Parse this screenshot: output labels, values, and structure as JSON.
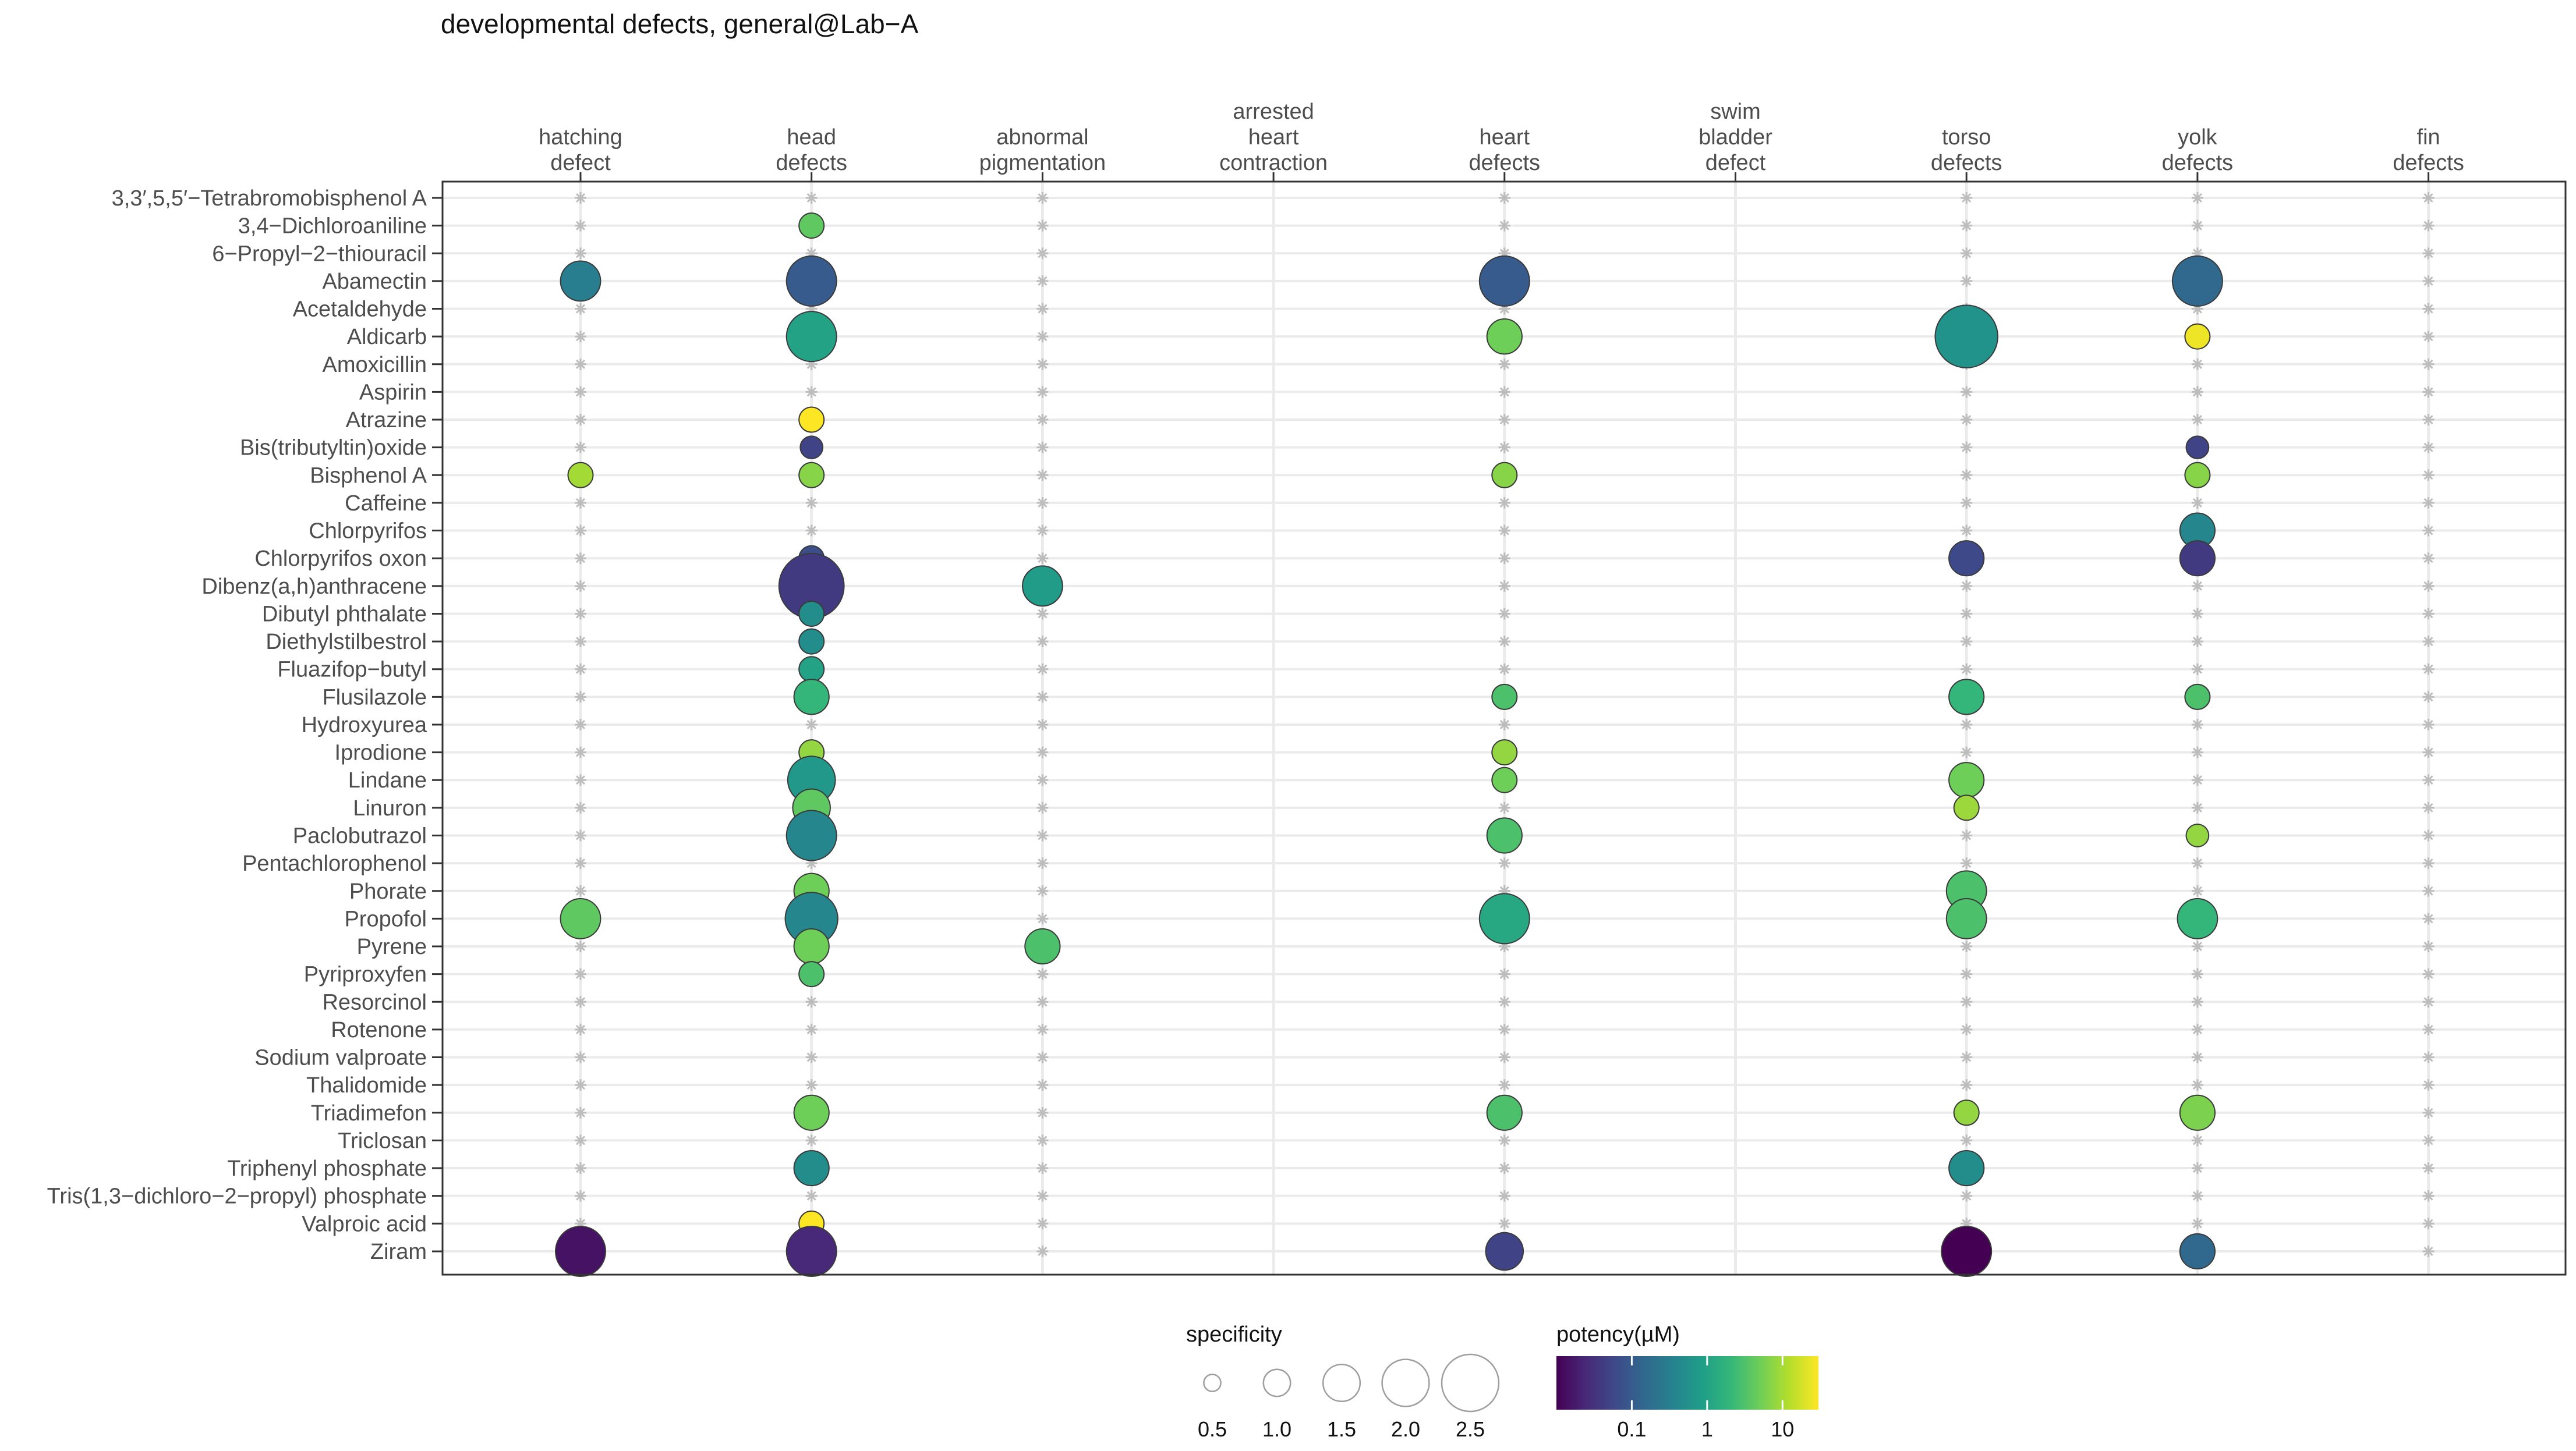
{
  "chart_data": {
    "type": "scatter",
    "title": "developmental defects, general@Lab−A",
    "columns": [
      [
        "hatching",
        "defect"
      ],
      [
        "head",
        "defects"
      ],
      [
        "abnormal",
        "pigmentation"
      ],
      [
        "arrested",
        "heart",
        "contraction"
      ],
      [
        "heart",
        "defects"
      ],
      [
        "swim",
        "bladder",
        "defect"
      ],
      [
        "torso",
        "defects"
      ],
      [
        "yolk",
        "defects"
      ],
      [
        "fin",
        "defects"
      ]
    ],
    "rows": [
      "3,3′,5,5′−Tetrabromobisphenol A",
      "3,4−Dichloroaniline",
      "6−Propyl−2−thiouracil",
      "Abamectin",
      "Acetaldehyde",
      "Aldicarb",
      "Amoxicillin",
      "Aspirin",
      "Atrazine",
      "Bis(tributyltin)oxide",
      "Bisphenol A",
      "Caffeine",
      "Chlorpyrifos",
      "Chlorpyrifos oxon",
      "Dibenz(a,h)anthracene",
      "Dibutyl phthalate",
      "Diethylstilbestrol",
      "Fluazifop−butyl",
      "Flusilazole",
      "Hydroxyurea",
      "Iprodione",
      "Lindane",
      "Linuron",
      "Paclobutrazol",
      "Pentachlorophenol",
      "Phorate",
      "Propofol",
      "Pyrene",
      "Pyriproxyfen",
      "Resorcinol",
      "Rotenone",
      "Sodium valproate",
      "Thalidomide",
      "Triadimefon",
      "Triclosan",
      "Triphenyl phosphate",
      "Tris(1,3−dichloro−2−propyl) phosphate",
      "Valproic acid",
      "Ziram"
    ],
    "points": [
      {
        "row": 1,
        "col": 1,
        "specificity": 1.0,
        "potency_uM": 4
      },
      {
        "row": 3,
        "col": 0,
        "specificity": 1.6,
        "potency_uM": 0.3
      },
      {
        "row": 3,
        "col": 1,
        "specificity": 2.0,
        "potency_uM": 0.1
      },
      {
        "row": 3,
        "col": 4,
        "specificity": 2.0,
        "potency_uM": 0.1
      },
      {
        "row": 3,
        "col": 7,
        "specificity": 2.0,
        "potency_uM": 0.15
      },
      {
        "row": 5,
        "col": 1,
        "specificity": 2.0,
        "potency_uM": 1
      },
      {
        "row": 5,
        "col": 4,
        "specificity": 1.4,
        "potency_uM": 5
      },
      {
        "row": 5,
        "col": 6,
        "specificity": 2.5,
        "potency_uM": 0.6
      },
      {
        "row": 5,
        "col": 7,
        "specificity": 1.0,
        "potency_uM": 25
      },
      {
        "row": 8,
        "col": 1,
        "specificity": 1.0,
        "potency_uM": 30
      },
      {
        "row": 9,
        "col": 1,
        "specificity": 0.9,
        "potency_uM": 0.05
      },
      {
        "row": 9,
        "col": 7,
        "specificity": 0.9,
        "potency_uM": 0.05
      },
      {
        "row": 10,
        "col": 0,
        "specificity": 1.0,
        "potency_uM": 10
      },
      {
        "row": 10,
        "col": 1,
        "specificity": 1.0,
        "potency_uM": 7
      },
      {
        "row": 10,
        "col": 4,
        "specificity": 1.0,
        "potency_uM": 7
      },
      {
        "row": 10,
        "col": 7,
        "specificity": 1.0,
        "potency_uM": 7
      },
      {
        "row": 12,
        "col": 7,
        "specificity": 1.4,
        "potency_uM": 0.4
      },
      {
        "row": 13,
        "col": 1,
        "specificity": 1.0,
        "potency_uM": 0.07
      },
      {
        "row": 13,
        "col": 6,
        "specificity": 1.4,
        "potency_uM": 0.06
      },
      {
        "row": 13,
        "col": 7,
        "specificity": 1.4,
        "potency_uM": 0.04
      },
      {
        "row": 14,
        "col": 1,
        "specificity": 2.6,
        "potency_uM": 0.04
      },
      {
        "row": 14,
        "col": 2,
        "specificity": 1.6,
        "potency_uM": 0.8
      },
      {
        "row": 15,
        "col": 1,
        "specificity": 1.0,
        "potency_uM": 0.5
      },
      {
        "row": 16,
        "col": 1,
        "specificity": 1.0,
        "potency_uM": 0.5
      },
      {
        "row": 17,
        "col": 1,
        "specificity": 1.0,
        "potency_uM": 1
      },
      {
        "row": 18,
        "col": 1,
        "specificity": 1.4,
        "potency_uM": 2
      },
      {
        "row": 18,
        "col": 4,
        "specificity": 1.0,
        "potency_uM": 3
      },
      {
        "row": 18,
        "col": 6,
        "specificity": 1.4,
        "potency_uM": 2
      },
      {
        "row": 18,
        "col": 7,
        "specificity": 1.0,
        "potency_uM": 3
      },
      {
        "row": 20,
        "col": 1,
        "specificity": 1.0,
        "potency_uM": 8
      },
      {
        "row": 20,
        "col": 4,
        "specificity": 1.0,
        "potency_uM": 8
      },
      {
        "row": 21,
        "col": 1,
        "specificity": 1.9,
        "potency_uM": 0.7
      },
      {
        "row": 21,
        "col": 4,
        "specificity": 1.0,
        "potency_uM": 5
      },
      {
        "row": 21,
        "col": 6,
        "specificity": 1.4,
        "potency_uM": 5
      },
      {
        "row": 22,
        "col": 1,
        "specificity": 1.5,
        "potency_uM": 4
      },
      {
        "row": 22,
        "col": 6,
        "specificity": 1.0,
        "potency_uM": 9
      },
      {
        "row": 23,
        "col": 1,
        "specificity": 2.0,
        "potency_uM": 0.4
      },
      {
        "row": 23,
        "col": 4,
        "specificity": 1.4,
        "potency_uM": 3
      },
      {
        "row": 23,
        "col": 7,
        "specificity": 0.9,
        "potency_uM": 8
      },
      {
        "row": 25,
        "col": 1,
        "specificity": 1.4,
        "potency_uM": 5
      },
      {
        "row": 25,
        "col": 6,
        "specificity": 1.6,
        "potency_uM": 3
      },
      {
        "row": 26,
        "col": 0,
        "specificity": 1.6,
        "potency_uM": 4
      },
      {
        "row": 26,
        "col": 1,
        "specificity": 2.1,
        "potency_uM": 0.4
      },
      {
        "row": 26,
        "col": 4,
        "specificity": 2.0,
        "potency_uM": 1.2
      },
      {
        "row": 26,
        "col": 6,
        "specificity": 1.6,
        "potency_uM": 3
      },
      {
        "row": 26,
        "col": 7,
        "specificity": 1.6,
        "potency_uM": 2
      },
      {
        "row": 27,
        "col": 1,
        "specificity": 1.4,
        "potency_uM": 5
      },
      {
        "row": 27,
        "col": 2,
        "specificity": 1.4,
        "potency_uM": 3
      },
      {
        "row": 28,
        "col": 1,
        "specificity": 1.0,
        "potency_uM": 3
      },
      {
        "row": 33,
        "col": 1,
        "specificity": 1.4,
        "potency_uM": 5
      },
      {
        "row": 33,
        "col": 4,
        "specificity": 1.4,
        "potency_uM": 3
      },
      {
        "row": 33,
        "col": 6,
        "specificity": 1.0,
        "potency_uM": 8
      },
      {
        "row": 33,
        "col": 7,
        "specificity": 1.4,
        "potency_uM": 6
      },
      {
        "row": 35,
        "col": 1,
        "specificity": 1.4,
        "potency_uM": 0.5
      },
      {
        "row": 35,
        "col": 6,
        "specificity": 1.4,
        "potency_uM": 0.5
      },
      {
        "row": 37,
        "col": 1,
        "specificity": 1.0,
        "potency_uM": 30
      },
      {
        "row": 38,
        "col": 0,
        "specificity": 2.0,
        "potency_uM": 0.015
      },
      {
        "row": 38,
        "col": 1,
        "specificity": 2.0,
        "potency_uM": 0.025
      },
      {
        "row": 38,
        "col": 4,
        "specificity": 1.5,
        "potency_uM": 0.05
      },
      {
        "row": 38,
        "col": 6,
        "specificity": 2.0,
        "potency_uM": 0.01
      },
      {
        "row": 38,
        "col": 7,
        "specificity": 1.4,
        "potency_uM": 0.15
      }
    ],
    "legend": {
      "specificity_title": "specificity",
      "specificity_values": [
        0.5,
        1.0,
        1.5,
        2.0,
        2.5
      ],
      "specificity_labels": [
        "0.5",
        "1.0",
        "1.5",
        "2.0",
        "2.5"
      ],
      "potency_title": "potency(µM)",
      "potency_ticks": [
        0.1,
        1,
        10
      ],
      "potency_labels": [
        "0.1",
        "1",
        "10"
      ],
      "potency_range": [
        0.01,
        30
      ]
    },
    "colors": {
      "viridis": [
        "#440154",
        "#482878",
        "#3e4989",
        "#31688e",
        "#26828e",
        "#1f9e89",
        "#35b779",
        "#6ece58",
        "#b5de2b",
        "#fde725"
      ],
      "placeholder": "#bdbdbd",
      "grid": "#ebebeb",
      "panel_border": "#333333",
      "text": "#4d4d4d"
    }
  }
}
